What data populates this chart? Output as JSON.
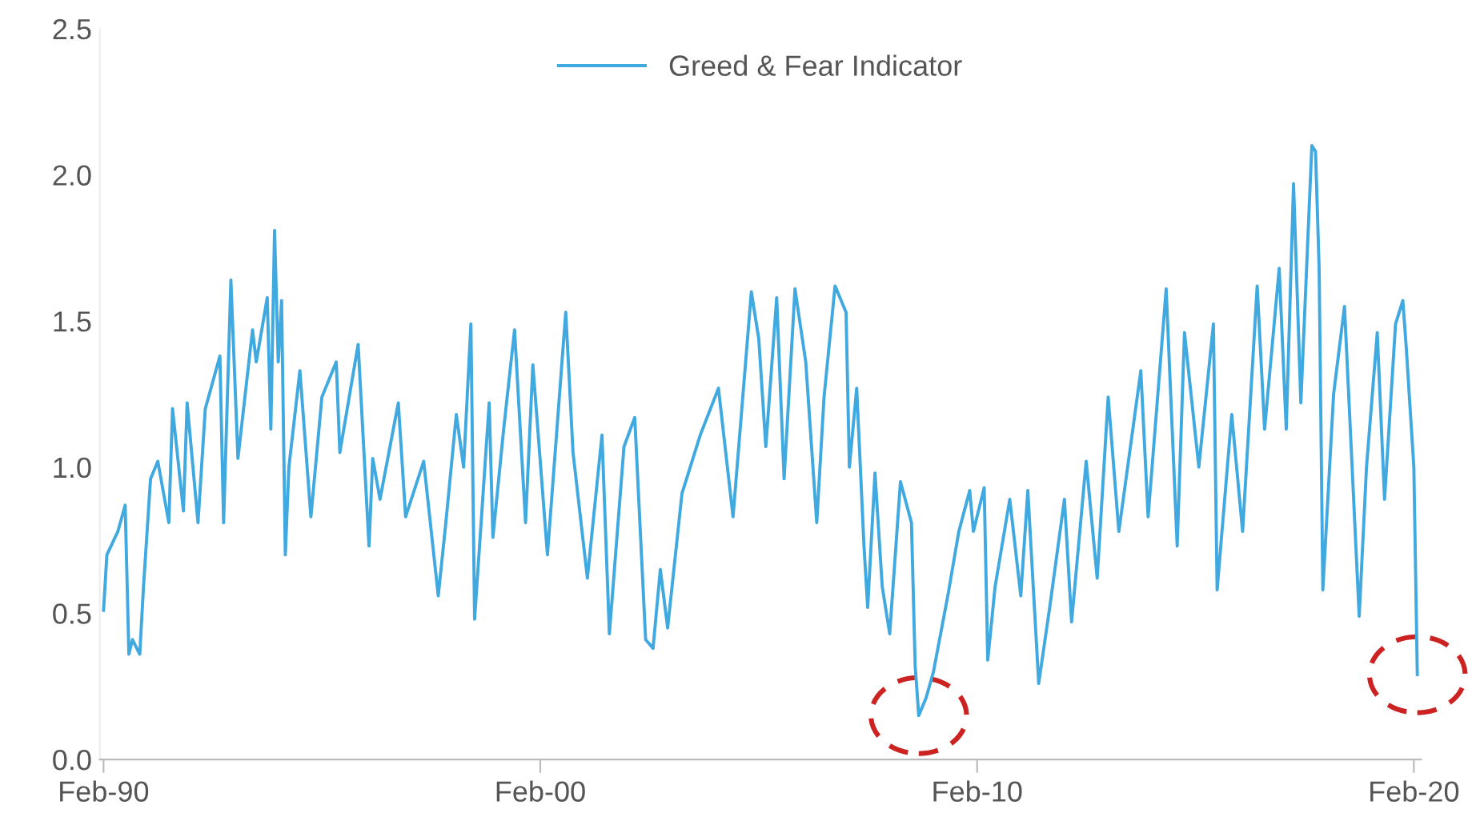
{
  "chart_data": {
    "type": "line",
    "x": [
      "1990-02",
      "1990-03",
      "1990-06",
      "1990-08",
      "1990-09",
      "1990-10",
      "1990-12",
      "1991-01",
      "1991-03",
      "1991-05",
      "1991-08",
      "1991-09",
      "1991-12",
      "1992-01",
      "1992-04",
      "1992-06",
      "1992-10",
      "1992-11",
      "1993-01",
      "1993-03",
      "1993-07",
      "1993-08",
      "1993-11",
      "1993-12",
      "1994-01",
      "1994-02",
      "1994-03",
      "1994-04",
      "1994-05",
      "1994-08",
      "1994-11",
      "1995-02",
      "1995-06",
      "1995-07",
      "1995-12",
      "1996-03",
      "1996-04",
      "1996-06",
      "1996-11",
      "1997-01",
      "1997-06",
      "1997-10",
      "1997-12",
      "1998-03",
      "1998-05",
      "1998-07",
      "1998-08",
      "1998-12",
      "1999-01",
      "1999-04",
      "1999-07",
      "1999-10",
      "1999-12",
      "2000-04",
      "2000-09",
      "2000-11",
      "2001-03",
      "2001-07",
      "2001-09",
      "2002-01",
      "2002-04",
      "2002-07",
      "2002-09",
      "2002-11",
      "2003-01",
      "2003-05",
      "2003-10",
      "2004-03",
      "2004-07",
      "2004-12",
      "2005-02",
      "2005-04",
      "2005-07",
      "2005-09",
      "2005-12",
      "2006-03",
      "2006-06",
      "2006-08",
      "2006-11",
      "2007-02",
      "2007-03",
      "2007-05",
      "2007-07",
      "2007-08",
      "2007-10",
      "2007-12",
      "2008-02",
      "2008-05",
      "2008-08",
      "2008-09",
      "2008-10",
      "2008-12",
      "2009-02",
      "2009-06",
      "2009-09",
      "2009-12",
      "2010-01",
      "2010-04",
      "2010-05",
      "2010-07",
      "2010-11",
      "2011-02",
      "2011-04",
      "2011-07",
      "2011-10",
      "2012-02",
      "2012-04",
      "2012-08",
      "2012-11",
      "2013-02",
      "2013-05",
      "2013-11",
      "2014-01",
      "2014-06",
      "2014-09",
      "2014-11",
      "2015-03",
      "2015-07",
      "2015-08",
      "2015-12",
      "2016-03",
      "2016-07",
      "2016-09",
      "2017-01",
      "2017-03",
      "2017-05",
      "2017-07",
      "2017-10",
      "2017-11",
      "2017-12",
      "2018-01",
      "2018-04",
      "2018-07",
      "2018-11",
      "2019-01",
      "2019-04",
      "2019-06",
      "2019-09",
      "2019-11",
      "2019-12",
      "2020-02",
      "2020-03"
    ],
    "series": [
      {
        "name": "Greed & Fear Indicator",
        "color": "#3fa9e0",
        "values": [
          0.51,
          0.7,
          0.78,
          0.87,
          0.36,
          0.41,
          0.36,
          0.59,
          0.96,
          1.02,
          0.81,
          1.2,
          0.85,
          1.22,
          0.81,
          1.2,
          1.38,
          0.81,
          1.64,
          1.03,
          1.47,
          1.36,
          1.58,
          1.13,
          1.81,
          1.36,
          1.57,
          0.7,
          1.0,
          1.33,
          0.83,
          1.24,
          1.36,
          1.05,
          1.42,
          0.73,
          1.03,
          0.89,
          1.22,
          0.83,
          1.02,
          0.56,
          0.8,
          1.18,
          1.0,
          1.49,
          0.48,
          1.22,
          0.76,
          1.13,
          1.47,
          0.81,
          1.35,
          0.7,
          1.53,
          1.05,
          0.62,
          1.11,
          0.43,
          1.07,
          1.17,
          0.41,
          0.38,
          0.65,
          0.45,
          0.91,
          1.11,
          1.27,
          0.83,
          1.6,
          1.44,
          1.07,
          1.58,
          0.96,
          1.61,
          1.36,
          0.81,
          1.24,
          1.62,
          1.53,
          1.0,
          1.27,
          0.73,
          0.52,
          0.98,
          0.59,
          0.43,
          0.95,
          0.81,
          0.32,
          0.15,
          0.21,
          0.3,
          0.56,
          0.78,
          0.92,
          0.78,
          0.93,
          0.34,
          0.59,
          0.89,
          0.56,
          0.92,
          0.26,
          0.52,
          0.89,
          0.47,
          1.02,
          0.62,
          1.24,
          0.78,
          1.33,
          0.83,
          1.61,
          0.73,
          1.46,
          1.0,
          1.49,
          0.58,
          1.18,
          0.78,
          1.62,
          1.13,
          1.68,
          1.13,
          1.97,
          1.22,
          2.1,
          2.08,
          1.68,
          0.58,
          1.25,
          1.55,
          0.49,
          1.0,
          1.46,
          0.89,
          1.49,
          1.57,
          1.4,
          1.0,
          0.29
        ]
      }
    ],
    "xlim": [
      "1990-01",
      "2020-04"
    ],
    "xticks": [
      {
        "value": "1990-02",
        "label": "Feb-90"
      },
      {
        "value": "2000-02",
        "label": "Feb-00"
      },
      {
        "value": "2010-02",
        "label": "Feb-10"
      },
      {
        "value": "2020-02",
        "label": "Feb-20"
      }
    ],
    "ylim": [
      0,
      2.5
    ],
    "yticks": [
      {
        "value": 0,
        "label": "0.0"
      },
      {
        "value": 0.5,
        "label": "0.5"
      },
      {
        "value": 1,
        "label": "1.0"
      },
      {
        "value": 1.5,
        "label": "1.5"
      },
      {
        "value": 2,
        "label": "2.0"
      },
      {
        "value": 2.5,
        "label": "2.5"
      }
    ],
    "grid": false,
    "legend": "top",
    "line_style": "solid",
    "marker": "none"
  }
}
